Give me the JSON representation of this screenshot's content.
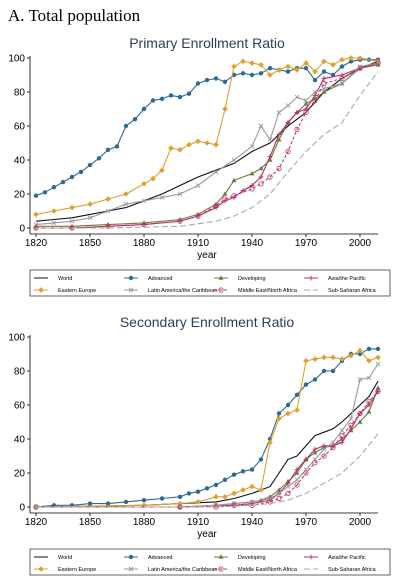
{
  "panel_title": "A.  Total population",
  "legend_entries": [
    {
      "name": "World",
      "color": "#111111",
      "dash": "",
      "marker": "none"
    },
    {
      "name": "Advanced",
      "color": "#2f6a94",
      "dash": "",
      "marker": "circle"
    },
    {
      "name": "Developing",
      "color": "#6e7a3c",
      "dash": "",
      "marker": "triangle"
    },
    {
      "name": "Asia/the Pacific",
      "color": "#b0306a",
      "dash": "",
      "marker": "plus"
    },
    {
      "name": "Eastern Europe",
      "color": "#e0a030",
      "dash": "",
      "marker": "diamond"
    },
    {
      "name": "Latin America/the Caribbean",
      "color": "#9a9a9a",
      "dash": "",
      "marker": "x"
    },
    {
      "name": "Middle East/North Africa",
      "color": "#c03a6a",
      "dash": "3,2",
      "marker": "ocircle"
    },
    {
      "name": "Sub-Saharan Africa",
      "color": "#aaaaaa",
      "dash": "6,3",
      "marker": "none"
    }
  ],
  "chart_data": [
    {
      "type": "line",
      "title": "Primary Enrollment Ratio",
      "xlabel": "year",
      "ylabel": "",
      "xlim": [
        1820,
        2010
      ],
      "ylim": [
        0,
        100
      ],
      "xticks": [
        1820,
        1850,
        1880,
        1910,
        1940,
        1970,
        2000
      ],
      "yticks": [
        0,
        20,
        40,
        60,
        80,
        100
      ],
      "grid": false,
      "legend": "bottom",
      "series": [
        {
          "name": "World",
          "x": [
            1820,
            1830,
            1840,
            1850,
            1860,
            1870,
            1880,
            1890,
            1900,
            1910,
            1920,
            1930,
            1940,
            1950,
            1960,
            1970,
            1980,
            1990,
            2000,
            2010
          ],
          "values": [
            4,
            5,
            6,
            8,
            10,
            12,
            16,
            20,
            25,
            30,
            34,
            38,
            45,
            50,
            60,
            68,
            80,
            88,
            94,
            98
          ]
        },
        {
          "name": "Advanced",
          "x": [
            1820,
            1825,
            1830,
            1835,
            1840,
            1845,
            1850,
            1855,
            1860,
            1865,
            1870,
            1875,
            1880,
            1885,
            1890,
            1895,
            1900,
            1905,
            1910,
            1915,
            1920,
            1925,
            1930,
            1935,
            1940,
            1945,
            1950,
            1955,
            1960,
            1965,
            1970,
            1975,
            1980,
            1985,
            1990,
            1995,
            2000,
            2005,
            2010
          ],
          "values": [
            19,
            21,
            24,
            27,
            30,
            33,
            37,
            41,
            46,
            48,
            60,
            64,
            70,
            75,
            76,
            78,
            77,
            79,
            85,
            87,
            88,
            86,
            90,
            91,
            90,
            91,
            94,
            93,
            92,
            94,
            94,
            87,
            92,
            90,
            95,
            98,
            99,
            99,
            99
          ]
        },
        {
          "name": "Developing",
          "x": [
            1820,
            1840,
            1860,
            1880,
            1900,
            1910,
            1920,
            1925,
            1930,
            1940,
            1945,
            1950,
            1955,
            1960,
            1965,
            1970,
            1975,
            1980,
            1990,
            2000,
            2010
          ],
          "values": [
            1,
            1,
            2,
            3,
            5,
            8,
            14,
            20,
            28,
            32,
            35,
            40,
            52,
            62,
            68,
            73,
            76,
            80,
            85,
            94,
            96
          ]
        },
        {
          "name": "Asia/the Pacific",
          "x": [
            1820,
            1840,
            1860,
            1880,
            1900,
            1910,
            1920,
            1925,
            1930,
            1935,
            1940,
            1945,
            1950,
            1955,
            1960,
            1965,
            1970,
            1975,
            1980,
            1990,
            2000,
            2010
          ],
          "values": [
            0,
            0,
            1,
            2,
            4,
            7,
            12,
            16,
            18,
            22,
            25,
            30,
            42,
            55,
            62,
            68,
            70,
            78,
            88,
            90,
            94,
            97
          ]
        },
        {
          "name": "Eastern Europe",
          "x": [
            1820,
            1830,
            1840,
            1850,
            1860,
            1870,
            1880,
            1885,
            1890,
            1895,
            1900,
            1905,
            1910,
            1915,
            1920,
            1925,
            1930,
            1935,
            1940,
            1945,
            1950,
            1955,
            1960,
            1965,
            1970,
            1975,
            1980,
            1985,
            1990,
            1995,
            2000,
            2010
          ],
          "values": [
            8,
            10,
            12,
            14,
            17,
            20,
            26,
            29,
            34,
            47,
            46,
            49,
            51,
            50,
            49,
            70,
            95,
            98,
            97,
            96,
            90,
            93,
            95,
            93,
            97,
            92,
            98,
            96,
            99,
            100,
            100,
            98
          ]
        },
        {
          "name": "Latin America/the Caribbean",
          "x": [
            1820,
            1830,
            1840,
            1850,
            1860,
            1870,
            1880,
            1890,
            1900,
            1910,
            1920,
            1930,
            1940,
            1945,
            1950,
            1955,
            1960,
            1965,
            1970,
            1975,
            1980,
            1990,
            2000,
            2010
          ],
          "values": [
            2,
            3,
            4,
            6,
            10,
            14,
            16,
            18,
            20,
            25,
            33,
            40,
            48,
            60,
            52,
            68,
            72,
            77,
            75,
            80,
            82,
            85,
            95,
            97
          ]
        },
        {
          "name": "Middle East/North Africa",
          "x": [
            1820,
            1840,
            1860,
            1880,
            1900,
            1910,
            1920,
            1925,
            1930,
            1940,
            1945,
            1950,
            1955,
            1960,
            1965,
            1970,
            1975,
            1980,
            1990,
            2000,
            2010
          ],
          "values": [
            0,
            0,
            1,
            2,
            4,
            7,
            13,
            17,
            19,
            23,
            26,
            30,
            35,
            45,
            58,
            68,
            75,
            85,
            88,
            94,
            97
          ]
        },
        {
          "name": "Sub-Saharan Africa",
          "x": [
            1820,
            1860,
            1900,
            1920,
            1930,
            1940,
            1950,
            1960,
            1970,
            1980,
            1990,
            2000,
            2010
          ],
          "values": [
            0,
            0,
            1,
            4,
            7,
            12,
            20,
            33,
            45,
            55,
            62,
            78,
            92
          ]
        }
      ]
    },
    {
      "type": "line",
      "title": "Secondary Enrollment Ratio",
      "xlabel": "year",
      "ylabel": "",
      "xlim": [
        1820,
        2010
      ],
      "ylim": [
        0,
        100
      ],
      "xticks": [
        1820,
        1850,
        1880,
        1910,
        1940,
        1970,
        2000
      ],
      "yticks": [
        0,
        20,
        40,
        60,
        80,
        100
      ],
      "grid": false,
      "legend": "bottom",
      "series": [
        {
          "name": "World",
          "x": [
            1820,
            1880,
            1900,
            1920,
            1930,
            1940,
            1950,
            1955,
            1960,
            1965,
            1970,
            1975,
            1980,
            1985,
            1990,
            1995,
            2000,
            2005,
            2010
          ],
          "values": [
            0,
            1,
            2,
            3,
            5,
            8,
            12,
            20,
            28,
            30,
            36,
            42,
            44,
            46,
            50,
            55,
            60,
            65,
            74
          ]
        },
        {
          "name": "Advanced",
          "x": [
            1820,
            1830,
            1840,
            1850,
            1860,
            1870,
            1880,
            1890,
            1900,
            1905,
            1910,
            1915,
            1920,
            1925,
            1930,
            1935,
            1940,
            1945,
            1950,
            1955,
            1960,
            1965,
            1970,
            1975,
            1980,
            1985,
            1990,
            1995,
            2000,
            2005,
            2010
          ],
          "values": [
            0,
            1,
            1,
            2,
            2,
            3,
            4,
            5,
            6,
            8,
            9,
            11,
            13,
            16,
            19,
            21,
            22,
            28,
            40,
            55,
            60,
            66,
            72,
            75,
            80,
            80,
            86,
            90,
            90,
            93,
            93
          ]
        },
        {
          "name": "Developing",
          "x": [
            1820,
            1900,
            1920,
            1930,
            1940,
            1945,
            1950,
            1955,
            1960,
            1965,
            1970,
            1975,
            1980,
            1985,
            1990,
            1995,
            2000,
            2005,
            2010
          ],
          "values": [
            0,
            0,
            1,
            2,
            3,
            4,
            6,
            10,
            15,
            20,
            28,
            32,
            35,
            36,
            40,
            45,
            50,
            56,
            70
          ]
        },
        {
          "name": "Asia/the Pacific",
          "x": [
            1820,
            1900,
            1920,
            1930,
            1940,
            1950,
            1955,
            1960,
            1965,
            1970,
            1975,
            1980,
            1985,
            1990,
            1995,
            2000,
            2005,
            2010
          ],
          "values": [
            0,
            0,
            1,
            1,
            2,
            4,
            8,
            14,
            22,
            28,
            34,
            36,
            36,
            38,
            46,
            55,
            60,
            68
          ]
        },
        {
          "name": "Eastern Europe",
          "x": [
            1820,
            1880,
            1900,
            1910,
            1920,
            1925,
            1930,
            1935,
            1940,
            1945,
            1950,
            1955,
            1960,
            1965,
            1970,
            1975,
            1980,
            1985,
            1990,
            1995,
            2000,
            2005,
            2010
          ],
          "values": [
            0,
            1,
            2,
            3,
            6,
            6,
            8,
            10,
            12,
            10,
            38,
            52,
            55,
            57,
            86,
            87,
            88,
            88,
            87,
            89,
            92,
            86,
            88
          ]
        },
        {
          "name": "Latin America/the Caribbean",
          "x": [
            1820,
            1900,
            1920,
            1930,
            1940,
            1950,
            1955,
            1960,
            1965,
            1970,
            1975,
            1980,
            1985,
            1990,
            1995,
            2000,
            2005,
            2010
          ],
          "values": [
            0,
            0,
            1,
            2,
            3,
            5,
            8,
            12,
            16,
            22,
            28,
            34,
            38,
            45,
            52,
            75,
            76,
            84
          ]
        },
        {
          "name": "Middle East/North Africa",
          "x": [
            1820,
            1900,
            1920,
            1930,
            1940,
            1950,
            1955,
            1960,
            1965,
            1970,
            1975,
            1980,
            1985,
            1990,
            1995,
            2000,
            2005,
            2010
          ],
          "values": [
            0,
            0,
            0,
            1,
            1,
            3,
            5,
            8,
            13,
            20,
            26,
            30,
            35,
            42,
            48,
            55,
            62,
            68
          ]
        },
        {
          "name": "Sub-Saharan Africa",
          "x": [
            1820,
            1920,
            1940,
            1950,
            1960,
            1970,
            1980,
            1990,
            2000,
            2010
          ],
          "values": [
            0,
            0,
            1,
            2,
            4,
            8,
            14,
            20,
            30,
            43
          ]
        }
      ]
    }
  ]
}
